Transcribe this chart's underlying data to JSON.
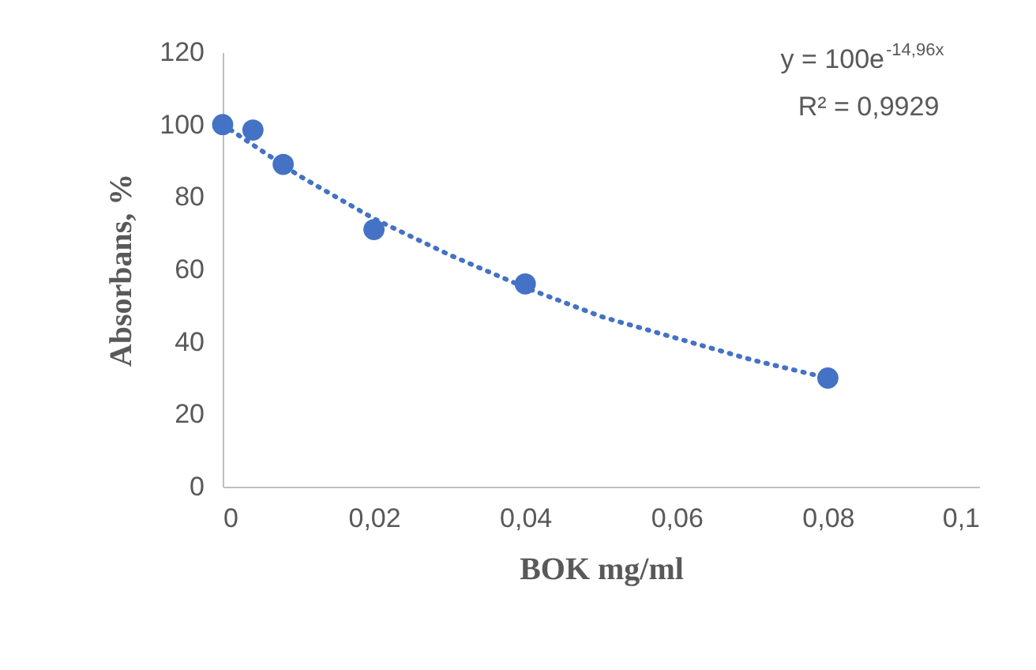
{
  "chart_data": {
    "type": "scatter",
    "xlabel": "BOK mg/ml",
    "ylabel": "Absorbans, %",
    "series": [
      {
        "color": "#4472c4",
        "marker": "circle",
        "x": [
          0,
          0.004,
          0.008,
          0.02,
          0.04,
          0.08
        ],
        "values": [
          100,
          98.5,
          89,
          71,
          56,
          30
        ]
      },
      {
        "type": "line",
        "color": "#4472c4",
        "line_style": "dotted",
        "marker": "none",
        "x": [
          0,
          0.01,
          0.02,
          0.03,
          0.04,
          0.05,
          0.06,
          0.07,
          0.08
        ],
        "values": [
          100,
          86,
          74,
          64,
          55,
          47,
          41,
          35,
          30
        ]
      }
    ],
    "annotations": [
      "y = 100e$^{-14,96x}$",
      "R² = 0,9929"
    ],
    "xlim": [
      0,
      0.1
    ],
    "xticks": [
      0,
      {
        "value": 0.02,
        "label": "0,02"
      },
      {
        "value": 0.04,
        "label": "0,04"
      },
      {
        "value": 0.06,
        "label": "0,06"
      },
      {
        "value": 0.08,
        "label": "0,08"
      },
      {
        "value": 0.1,
        "label": "0,1"
      }
    ],
    "ylim": [
      0,
      120
    ],
    "yticks": [
      0,
      20,
      40,
      60,
      80,
      100,
      120
    ],
    "grid": false
  }
}
